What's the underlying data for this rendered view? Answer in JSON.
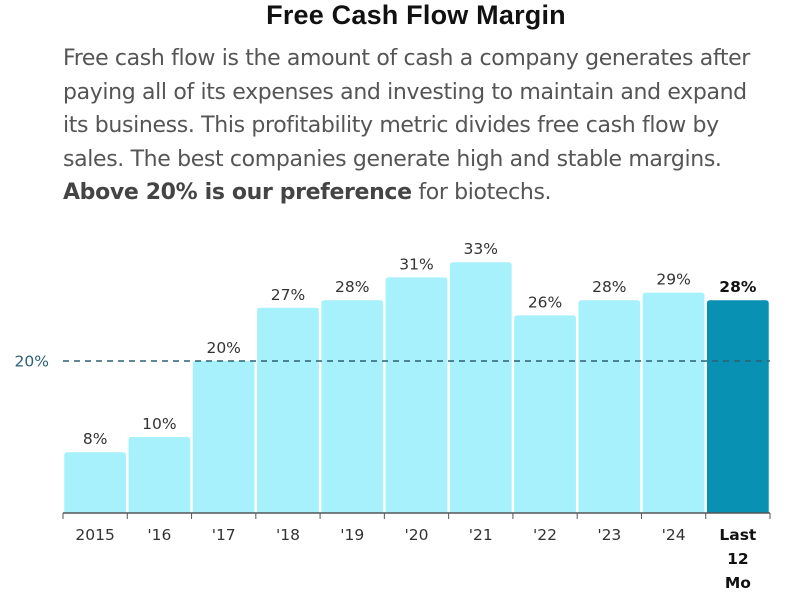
{
  "chart_data": {
    "type": "bar",
    "title": "Free Cash Flow Margin",
    "description": {
      "before": "Free cash flow is the amount of cash a company generates after paying all of its expenses and investing to maintain and expand its business. This profitability metric divides free cash flow by sales. The best companies generate high and stable margins. ",
      "bold": "Above 20% is our preference",
      "after": " for biotechs."
    },
    "categories": [
      "2015",
      "'16",
      "'17",
      "'18",
      "'19",
      "'20",
      "'21",
      "'22",
      "'23",
      "'24",
      "Last 12 Mo"
    ],
    "values": [
      8,
      10,
      20,
      27,
      28,
      31,
      33,
      26,
      28,
      29,
      28
    ],
    "value_labels": [
      "8%",
      "10%",
      "20%",
      "27%",
      "28%",
      "31%",
      "33%",
      "26%",
      "28%",
      "29%",
      "28%"
    ],
    "highlight_index": 10,
    "reference_line": {
      "value": 20,
      "label": "20%"
    },
    "ylim": [
      0,
      40
    ],
    "xlabel": "",
    "ylabel": "",
    "colors": {
      "bar": "#a6f1fb",
      "highlight": "#0891b2",
      "reference": "#2d6073",
      "axis": "#555555"
    }
  }
}
